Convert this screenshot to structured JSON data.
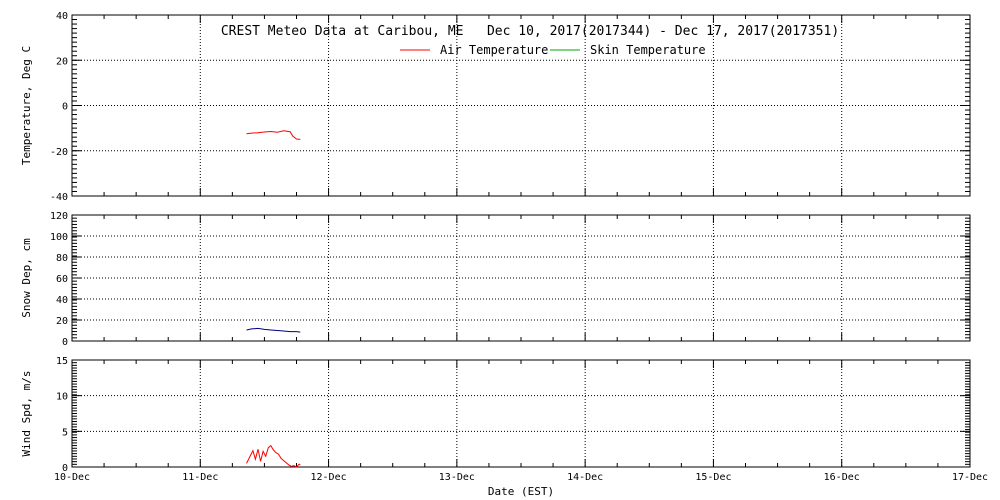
{
  "chart_data": {
    "type": "line",
    "title": "CREST Meteo Data at Caribou, ME   Dec 10, 2017(2017344) - Dec 17, 2017(2017351)",
    "xlabel": "Date (EST)",
    "x_tick_labels": [
      "10-Dec",
      "11-Dec",
      "12-Dec",
      "13-Dec",
      "14-Dec",
      "15-Dec",
      "16-Dec",
      "17-Dec"
    ],
    "xlim": [
      10,
      17
    ],
    "grid": true,
    "legend": {
      "placement": "top-center",
      "entries": [
        {
          "name": "Air Temperature",
          "color": "#ff0000"
        },
        {
          "name": "Skin Temperature",
          "color": "#00aa00"
        }
      ]
    },
    "panels": [
      {
        "id": "temperature",
        "ylabel": "Temperature, Deg C",
        "ylim": [
          -40,
          40
        ],
        "yticks": [
          -40,
          -20,
          0,
          20,
          40
        ],
        "series": [
          {
            "name": "Air Temperature",
            "color": "#ff0000",
            "x": [
              11.36,
              11.4,
              11.45,
              11.5,
              11.55,
              11.6,
              11.65,
              11.7,
              11.72,
              11.75,
              11.78
            ],
            "y": [
              -12.5,
              -12.2,
              -12.0,
              -11.7,
              -11.5,
              -11.8,
              -11.2,
              -11.6,
              -13.5,
              -14.8,
              -15.0
            ]
          }
        ]
      },
      {
        "id": "snow",
        "ylabel": "Snow Dep, cm",
        "ylim": [
          0,
          120
        ],
        "yticks": [
          0,
          20,
          40,
          60,
          80,
          100,
          120
        ],
        "series": [
          {
            "name": "Snow Depth",
            "color": "#000080",
            "x": [
              11.36,
              11.4,
              11.45,
              11.5,
              11.55,
              11.6,
              11.65,
              11.7,
              11.75,
              11.78
            ],
            "y": [
              10.5,
              11.5,
              12.0,
              11.0,
              10.5,
              10.0,
              9.5,
              9.0,
              9.0,
              8.5
            ]
          }
        ]
      },
      {
        "id": "wind",
        "ylabel": "Wind Spd, m/s",
        "ylim": [
          0,
          15
        ],
        "yticks": [
          0,
          5,
          10,
          15
        ],
        "series": [
          {
            "name": "Wind Speed",
            "color": "#ff0000",
            "x": [
              11.36,
              11.38,
              11.41,
              11.43,
              11.45,
              11.47,
              11.49,
              11.51,
              11.53,
              11.55,
              11.57,
              11.59,
              11.61,
              11.63,
              11.65,
              11.67,
              11.69,
              11.71,
              11.73,
              11.75,
              11.77,
              11.78
            ],
            "y": [
              0.5,
              1.2,
              2.3,
              1.1,
              2.5,
              0.8,
              2.2,
              1.5,
              2.7,
              3.0,
              2.4,
              2.0,
              1.8,
              1.2,
              0.9,
              0.6,
              0.3,
              0.1,
              0.2,
              0.0,
              0.4,
              0.3
            ]
          }
        ]
      }
    ]
  }
}
